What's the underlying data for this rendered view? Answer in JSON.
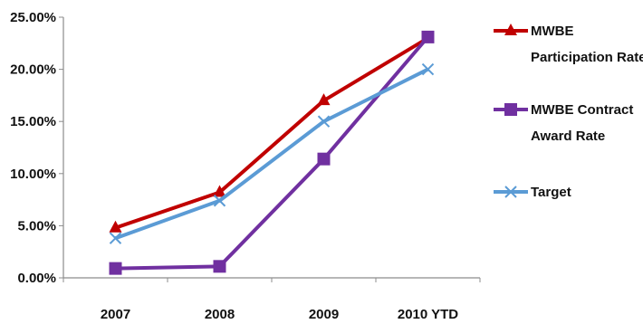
{
  "chart_data": {
    "type": "line",
    "categories": [
      "2007",
      "2008",
      "2009",
      "2010 YTD"
    ],
    "ylim": [
      0,
      25
    ],
    "yticks": [
      "0.00%",
      "5.00%",
      "10.00%",
      "15.00%",
      "20.00%",
      "25.00%"
    ],
    "grid": false,
    "legend_position": "right",
    "series": [
      {
        "name": "MWBE Participation Rate",
        "name_lines": [
          "MWBE",
          "Participation Rate"
        ],
        "values": [
          4.8,
          8.2,
          17.0,
          23.0
        ],
        "color": "#C00000",
        "marker": "triangle"
      },
      {
        "name": "MWBE Contract Award Rate",
        "name_lines": [
          "MWBE Contract",
          "Award Rate"
        ],
        "values": [
          0.9,
          1.1,
          11.4,
          23.1
        ],
        "color": "#7030A0",
        "marker": "square"
      },
      {
        "name": "Target",
        "name_lines": [
          "Target"
        ],
        "values": [
          3.8,
          7.4,
          15.0,
          20.0
        ],
        "color": "#5B9BD5",
        "marker": "x"
      }
    ]
  }
}
